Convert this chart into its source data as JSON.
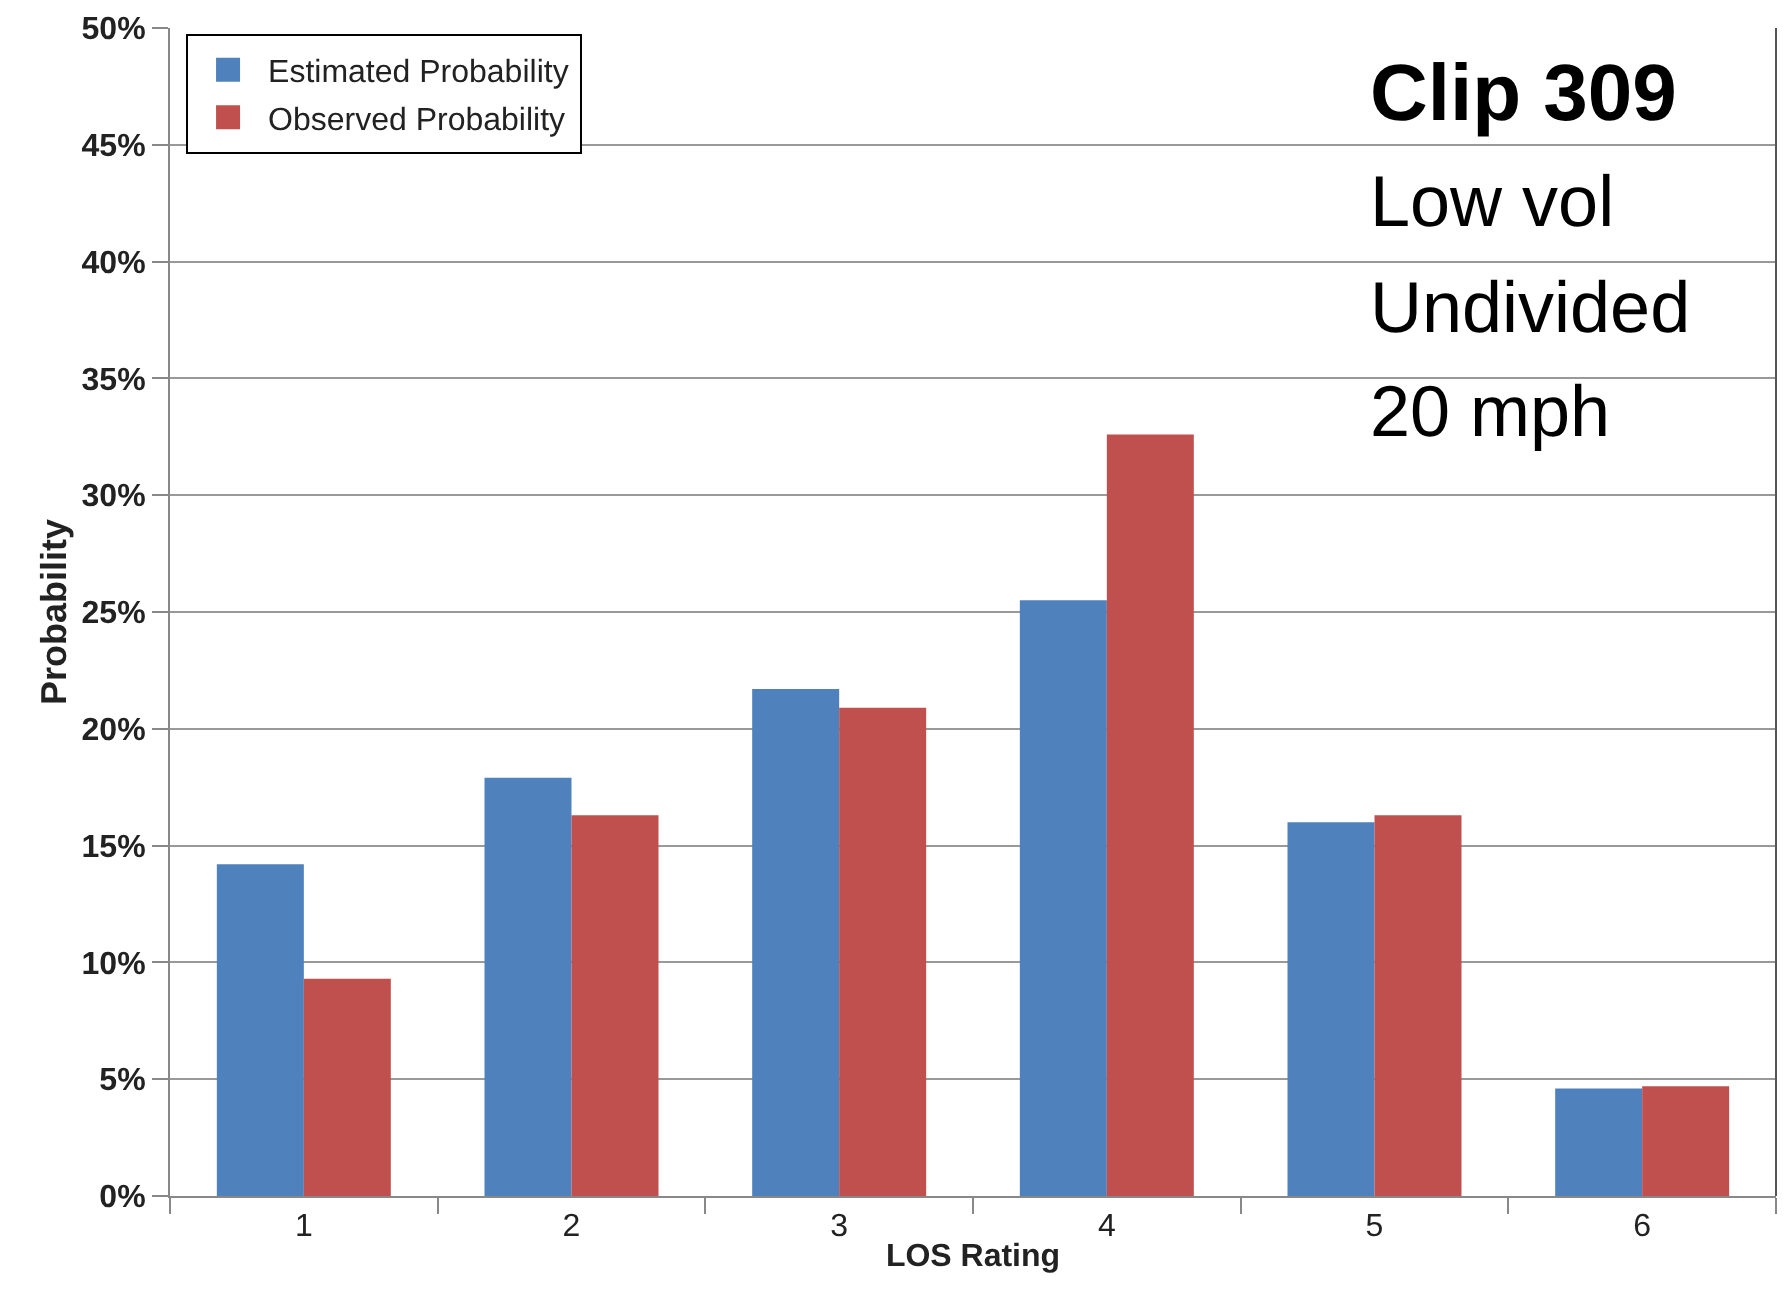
{
  "chart_data": {
    "type": "bar",
    "xlabel": "LOS Rating",
    "ylabel": "Probability",
    "categories": [
      "1",
      "2",
      "3",
      "4",
      "5",
      "6"
    ],
    "series": [
      {
        "name": "Estimated Probability",
        "color": "#4f81bd",
        "values": [
          14.2,
          17.9,
          21.7,
          25.5,
          16.0,
          4.6
        ]
      },
      {
        "name": "Observed Probability",
        "color": "#c0504d",
        "values": [
          9.3,
          16.3,
          20.9,
          32.6,
          16.3,
          4.7
        ]
      }
    ],
    "ylim": [
      0,
      50
    ],
    "yticks": [
      {
        "value": 0,
        "label": "0%"
      },
      {
        "value": 5,
        "label": "5%"
      },
      {
        "value": 10,
        "label": "10%"
      },
      {
        "value": 15,
        "label": "15%"
      },
      {
        "value": 20,
        "label": "20%"
      },
      {
        "value": 25,
        "label": "25%"
      },
      {
        "value": 30,
        "label": "30%"
      },
      {
        "value": 35,
        "label": "35%"
      },
      {
        "value": 40,
        "label": "40%"
      },
      {
        "value": 45,
        "label": "45%"
      },
      {
        "value": 50,
        "label": "50%"
      }
    ],
    "grid": "y",
    "legend": "top left",
    "annotations": [
      "Clip 309",
      "Low vol",
      "Undivided",
      "20 mph"
    ]
  }
}
